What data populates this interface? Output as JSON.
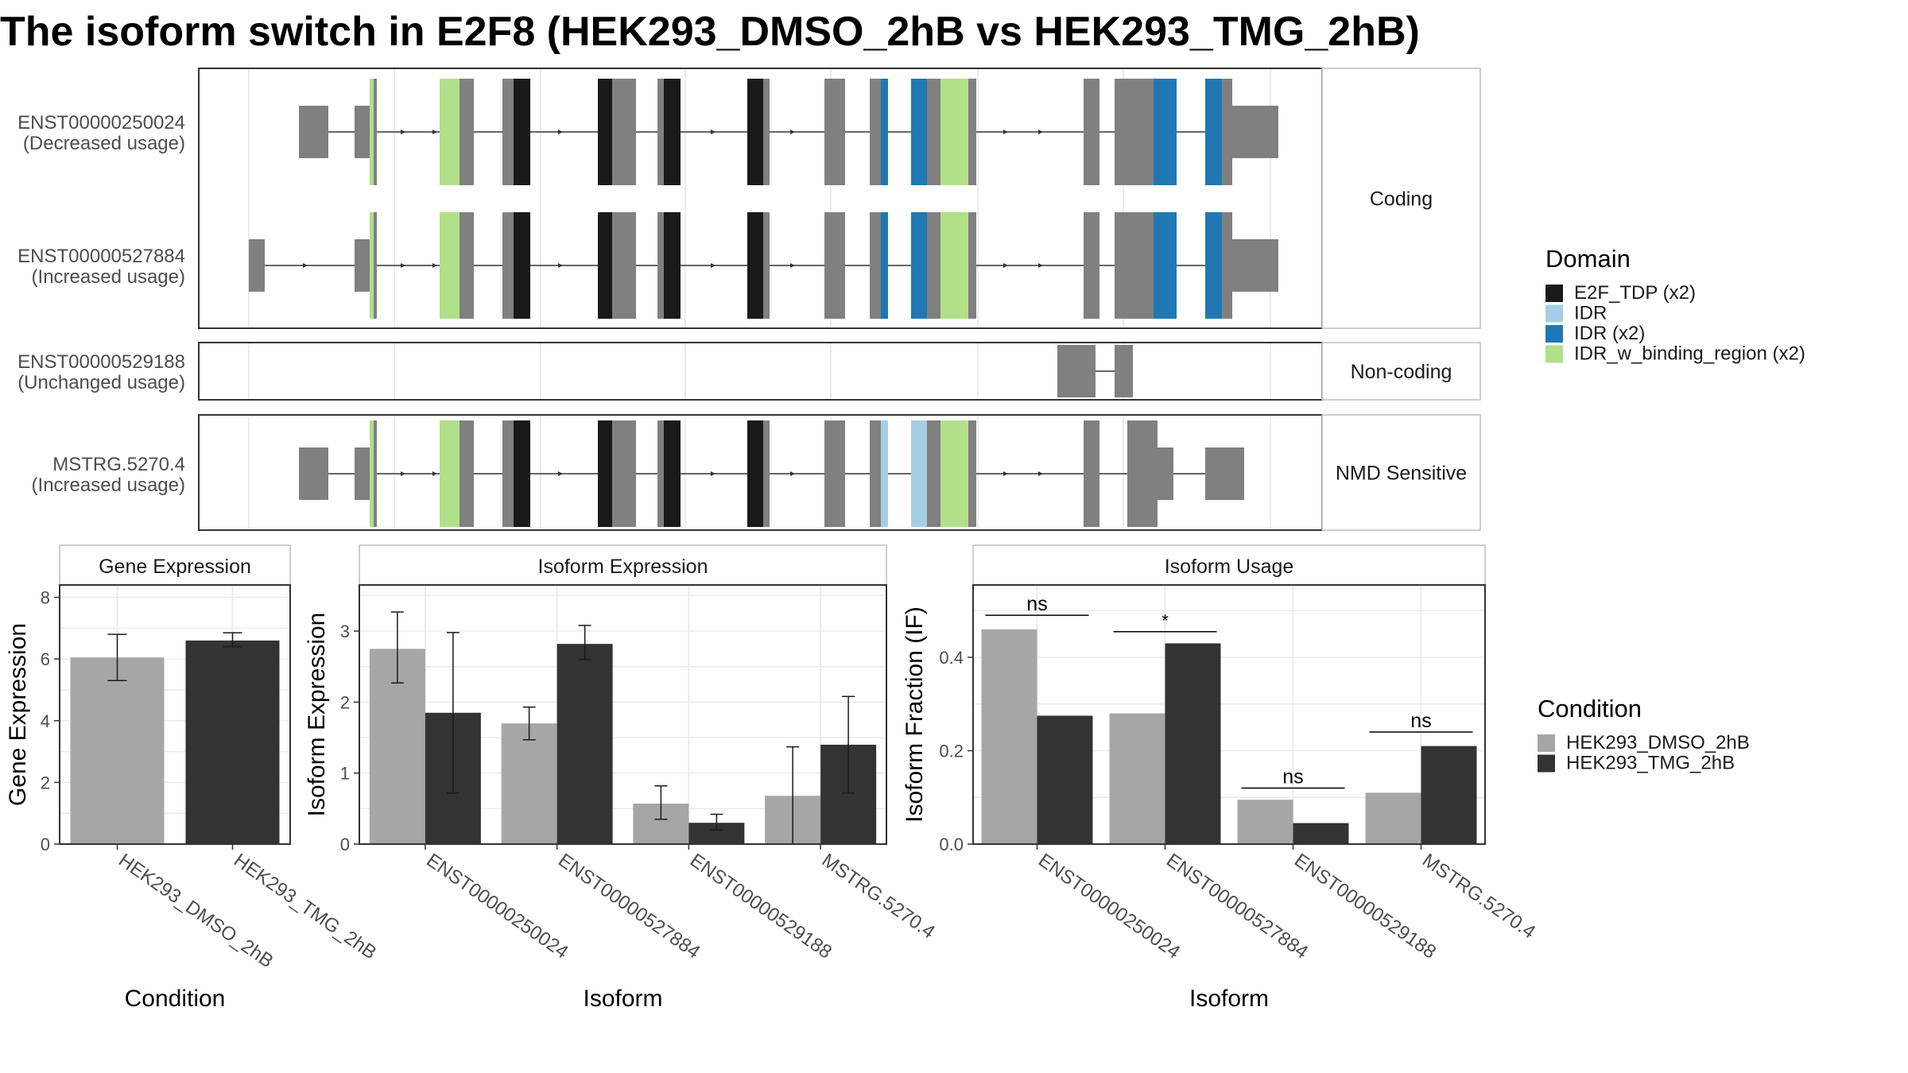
{
  "title": "The isoform switch in E2F8 (HEK293_DMSO_2hB vs HEK293_TMG_2hB)",
  "colors": {
    "exon": "#808080",
    "E2F_TDP": "#1a1a1a",
    "IDR": "#a6cee3",
    "IDR_x2": "#1f78b4",
    "IDR_w_binding_region": "#b2df8a",
    "dmso": "#a6a6a6",
    "tmg": "#333333",
    "panel_border": "#333333",
    "strip_border": "#bdbdbd",
    "grid": "#ebebeb"
  },
  "transcripts": {
    "groups": [
      {
        "label": "Coding",
        "tracks": [
          {
            "id": "ENST00000250024",
            "usage": "(Decreased usage)",
            "variant": "A"
          },
          {
            "id": "ENST00000527884",
            "usage": "(Increased usage)",
            "variant": "B"
          }
        ]
      },
      {
        "label": "Non-coding",
        "tracks": [
          {
            "id": "ENST00000529188",
            "usage": "(Unchanged usage)",
            "variant": "N"
          }
        ]
      },
      {
        "label": "NMD Sensitive",
        "tracks": [
          {
            "id": "MSTRG.5270.4",
            "usage": "(Increased usage)",
            "variant": "M"
          }
        ]
      }
    ]
  },
  "legend_domain": {
    "title": "Domain",
    "items": [
      {
        "label": "E2F_TDP (x2)",
        "color": "#1a1a1a"
      },
      {
        "label": "IDR",
        "color": "#a6cee3"
      },
      {
        "label": "IDR (x2)",
        "color": "#1f78b4"
      },
      {
        "label": "IDR_w_binding_region (x2)",
        "color": "#b2df8a"
      }
    ]
  },
  "legend_condition": {
    "title": "Condition",
    "items": [
      {
        "label": "HEK293_DMSO_2hB",
        "color": "#a6a6a6"
      },
      {
        "label": "HEK293_TMG_2hB",
        "color": "#333333"
      }
    ]
  },
  "chart_data": [
    {
      "type": "bar",
      "title": "Gene Expression",
      "xlabel": "Condition",
      "ylabel": "Gene Expression",
      "categories": [
        "HEK293_DMSO_2hB",
        "HEK293_TMG_2hB"
      ],
      "values": [
        6.05,
        6.6
      ],
      "error": [
        [
          5.3,
          6.8
        ],
        [
          6.4,
          6.85
        ]
      ],
      "ylim": [
        0,
        8.4
      ],
      "yticks": [
        0,
        2,
        4,
        6,
        8
      ]
    },
    {
      "type": "bar",
      "title": "Isoform Expression",
      "xlabel": "Isoform",
      "ylabel": "Isoform Expression",
      "categories": [
        "ENST00000250024",
        "ENST00000527884",
        "ENST00000529188",
        "MSTRG.5270.4"
      ],
      "series": [
        {
          "name": "HEK293_DMSO_2hB",
          "values": [
            2.75,
            1.7,
            0.57,
            0.68
          ],
          "error": [
            [
              2.27,
              3.27
            ],
            [
              1.47,
              1.93
            ],
            [
              0.35,
              0.82
            ],
            [
              0.0,
              1.37
            ]
          ]
        },
        {
          "name": "HEK293_TMG_2hB",
          "values": [
            1.85,
            2.82,
            0.3,
            1.4
          ],
          "error": [
            [
              0.72,
              2.98
            ],
            [
              2.6,
              3.08
            ],
            [
              0.2,
              0.42
            ],
            [
              0.72,
              2.08
            ]
          ]
        }
      ],
      "ylim": [
        0,
        3.65
      ],
      "yticks": [
        0,
        1,
        2,
        3
      ]
    },
    {
      "type": "bar",
      "title": "Isoform Usage",
      "xlabel": "Isoform",
      "ylabel": "Isoform Fraction (IF)",
      "categories": [
        "ENST00000250024",
        "ENST00000527884",
        "ENST00000529188",
        "MSTRG.5270.4"
      ],
      "series": [
        {
          "name": "HEK293_DMSO_2hB",
          "values": [
            0.46,
            0.28,
            0.095,
            0.11
          ]
        },
        {
          "name": "HEK293_TMG_2hB",
          "values": [
            0.275,
            0.43,
            0.045,
            0.21
          ]
        }
      ],
      "significance": [
        {
          "label": "ns",
          "y": 0.49
        },
        {
          "label": "*",
          "y": 0.455
        },
        {
          "label": "ns",
          "y": 0.12
        },
        {
          "label": "ns",
          "y": 0.24
        }
      ],
      "ylim": [
        0,
        0.555
      ],
      "yticks": [
        0.0,
        0.2,
        0.4
      ],
      "ytick_labels": [
        "0.0",
        "0.2",
        "0.4"
      ]
    }
  ]
}
